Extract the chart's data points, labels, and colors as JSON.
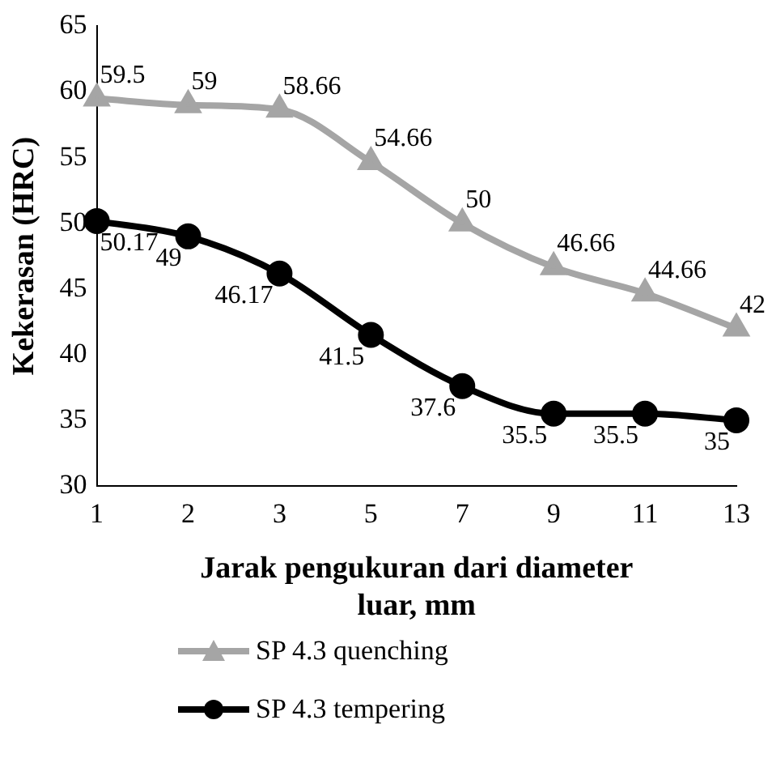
{
  "chart_data": {
    "type": "line",
    "xlabel": "Jarak pengukuran dari diameter luar, mm",
    "ylabel": "Kekerasan (HRC)",
    "categories": [
      "1",
      "2",
      "3",
      "5",
      "7",
      "9",
      "11",
      "13"
    ],
    "series": [
      {
        "name": "SP 4.3 quenching",
        "color": "#a5a5a5",
        "marker": "triangle",
        "values": [
          59.5,
          59,
          58.66,
          54.66,
          50,
          46.66,
          44.66,
          42
        ]
      },
      {
        "name": "SP 4.3 tempering",
        "color": "#000000",
        "marker": "circle",
        "values": [
          50.17,
          49,
          46.17,
          41.5,
          37.6,
          35.5,
          35.5,
          35
        ]
      }
    ],
    "ylim": [
      30,
      65
    ],
    "yticks": [
      30,
      35,
      40,
      45,
      50,
      55,
      60,
      65
    ],
    "grid": false,
    "legend": "bottom",
    "data_labels": true
  }
}
